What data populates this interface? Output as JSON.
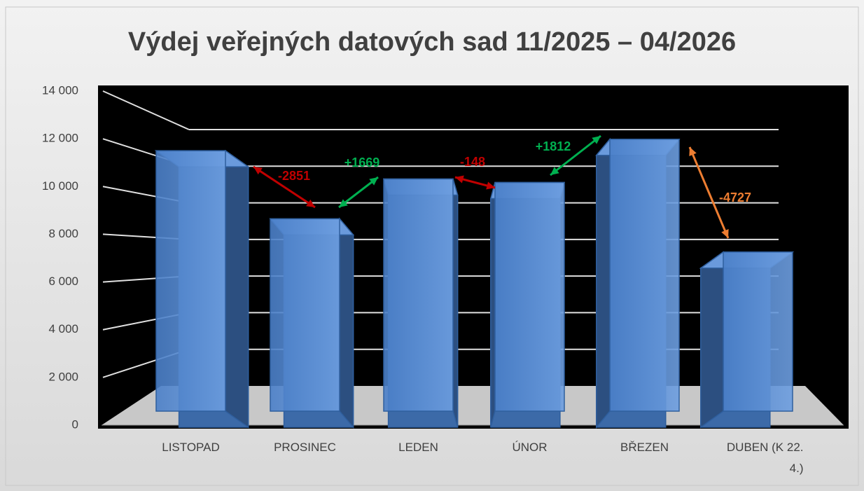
{
  "chart_data": {
    "type": "bar3d",
    "title": "Výdej veřejných datových sad 11/2025 – 04/2026",
    "categories": [
      "LISTOPAD",
      "PROSINEC",
      "LEDEN",
      "ÚNOR",
      "BŘEZEN",
      "DUBEN (K 22. 4.)"
    ],
    "values": [
      11500,
      8649,
      10318,
      10170,
      11982,
      7255
    ],
    "color": "#5b8fd6",
    "ylim": [
      0,
      14000
    ],
    "yticks": [
      0,
      {
        "value": 2000,
        "label": "2 000"
      },
      {
        "value": 4000,
        "label": "4 000"
      },
      {
        "value": 6000,
        "label": "6 000"
      },
      {
        "value": 8000,
        "label": "8 000"
      },
      {
        "value": 10000,
        "label": "10 000"
      },
      {
        "value": 12000,
        "label": "12 000"
      },
      {
        "value": 14000,
        "label": "14 000"
      }
    ],
    "grid": true,
    "annotations": [
      {
        "text": "-2851",
        "color": "#c00000"
      },
      {
        "text": "+1669",
        "color": "#00b050"
      },
      {
        "text": "-148",
        "color": "#c00000"
      },
      {
        "text": "+1812",
        "color": "#00b050"
      },
      {
        "text": "-4727",
        "color": "#ed7d31"
      }
    ]
  }
}
